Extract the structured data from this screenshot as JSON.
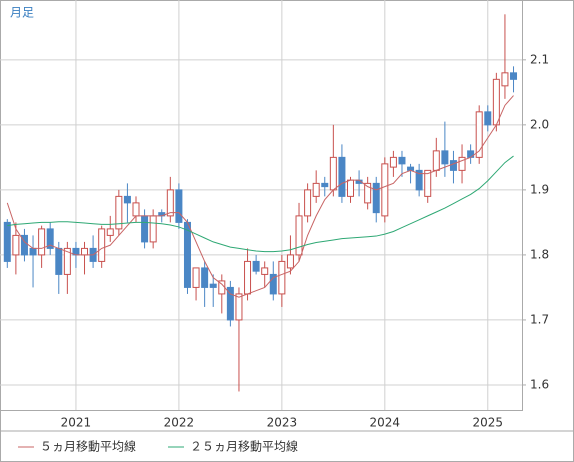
{
  "chart_data": {
    "type": "candlestick",
    "label": "月足",
    "categories": [
      null,
      null,
      null,
      null,
      null,
      null,
      null,
      null,
      "2021",
      null,
      null,
      null,
      null,
      null,
      null,
      null,
      null,
      null,
      null,
      null,
      "2022",
      null,
      null,
      null,
      null,
      null,
      null,
      null,
      null,
      null,
      null,
      null,
      "2023",
      null,
      null,
      null,
      null,
      null,
      null,
      null,
      null,
      null,
      null,
      null,
      "2024",
      null,
      null,
      null,
      null,
      null,
      null,
      null,
      null,
      null,
      null,
      null,
      "2025",
      null,
      null,
      null
    ],
    "ohlc": {
      "up_color": "#c8504d",
      "down_color": "#4a86c5",
      "open": [
        1.85,
        1.8,
        1.83,
        1.81,
        1.8,
        1.84,
        1.81,
        1.77,
        1.81,
        1.8,
        1.81,
        1.79,
        1.83,
        1.84,
        1.89,
        1.86,
        1.86,
        1.82,
        1.865,
        1.86,
        1.9,
        1.85,
        1.75,
        1.78,
        1.755,
        1.74,
        1.75,
        1.7,
        1.74,
        1.79,
        1.77,
        1.77,
        1.74,
        1.78,
        1.8,
        1.86,
        1.89,
        1.91,
        1.9,
        1.95,
        1.89,
        1.915,
        1.88,
        1.91,
        1.86,
        1.935,
        1.95,
        1.935,
        1.93,
        1.89,
        1.93,
        1.96,
        1.945,
        1.93,
        1.96,
        1.95,
        2.02,
        2.0,
        2.06,
        2.08
      ],
      "high": [
        1.855,
        1.85,
        1.84,
        1.83,
        1.845,
        1.85,
        1.82,
        1.82,
        1.82,
        1.82,
        1.83,
        1.845,
        1.86,
        1.9,
        1.91,
        1.89,
        1.87,
        1.87,
        1.87,
        1.92,
        1.91,
        1.855,
        1.78,
        1.79,
        1.77,
        1.77,
        1.76,
        1.75,
        1.81,
        1.8,
        1.79,
        1.79,
        1.8,
        1.83,
        1.88,
        1.91,
        1.93,
        1.92,
        2.0,
        1.97,
        1.92,
        1.93,
        1.92,
        1.92,
        1.95,
        1.96,
        1.96,
        1.94,
        1.94,
        1.93,
        1.98,
        2.005,
        1.96,
        1.97,
        1.97,
        2.03,
        2.03,
        2.08,
        2.17,
        2.09
      ],
      "low": [
        1.78,
        1.77,
        1.79,
        1.75,
        1.78,
        1.8,
        1.74,
        1.74,
        1.78,
        1.77,
        1.78,
        1.78,
        1.82,
        1.83,
        1.85,
        1.85,
        1.81,
        1.81,
        1.85,
        1.85,
        1.84,
        1.74,
        1.73,
        1.72,
        1.72,
        1.71,
        1.69,
        1.59,
        1.73,
        1.77,
        1.75,
        1.73,
        1.72,
        1.77,
        1.79,
        1.85,
        1.88,
        1.89,
        1.89,
        1.88,
        1.88,
        1.89,
        1.87,
        1.85,
        1.85,
        1.92,
        1.92,
        1.91,
        1.89,
        1.88,
        1.92,
        1.92,
        1.91,
        1.91,
        1.94,
        1.94,
        1.99,
        1.99,
        2.04,
        2.05
      ],
      "close": [
        1.79,
        1.83,
        1.8,
        1.8,
        1.84,
        1.81,
        1.77,
        1.81,
        1.8,
        1.81,
        1.79,
        1.84,
        1.84,
        1.89,
        1.88,
        1.88,
        1.82,
        1.86,
        1.86,
        1.9,
        1.85,
        1.75,
        1.78,
        1.75,
        1.75,
        1.76,
        1.7,
        1.74,
        1.79,
        1.775,
        1.78,
        1.74,
        1.79,
        1.8,
        1.86,
        1.9,
        1.91,
        1.905,
        1.95,
        1.89,
        1.915,
        1.91,
        1.91,
        1.865,
        1.94,
        1.95,
        1.94,
        1.93,
        1.9,
        1.93,
        1.96,
        1.94,
        1.93,
        1.95,
        1.95,
        2.02,
        2.0,
        2.07,
        2.08,
        2.07
      ]
    },
    "series": [
      {
        "name": "５ヵ月移動平均線",
        "color": "#c86464",
        "values": [
          1.88,
          1.84,
          1.82,
          1.81,
          1.81,
          1.815,
          1.81,
          1.805,
          1.8,
          1.8,
          1.8,
          1.81,
          1.815,
          1.83,
          1.845,
          1.86,
          1.86,
          1.86,
          1.86,
          1.865,
          1.865,
          1.85,
          1.82,
          1.79,
          1.765,
          1.755,
          1.74,
          1.735,
          1.74,
          1.745,
          1.75,
          1.765,
          1.77,
          1.775,
          1.79,
          1.83,
          1.86,
          1.885,
          1.9,
          1.91,
          1.915,
          1.915,
          1.905,
          1.9,
          1.905,
          1.91,
          1.925,
          1.93,
          1.925,
          1.925,
          1.93,
          1.935,
          1.94,
          1.945,
          1.95,
          1.96,
          1.98,
          2.0,
          2.03,
          2.045
        ]
      },
      {
        "name": "２５ヵ月移動平均線",
        "color": "#2ea874",
        "values": [
          1.845,
          1.847,
          1.848,
          1.849,
          1.85,
          1.85,
          1.851,
          1.851,
          1.85,
          1.849,
          1.848,
          1.847,
          1.847,
          1.848,
          1.849,
          1.85,
          1.85,
          1.849,
          1.848,
          1.846,
          1.843,
          1.838,
          1.832,
          1.826,
          1.82,
          1.816,
          1.812,
          1.81,
          1.808,
          1.806,
          1.805,
          1.805,
          1.806,
          1.808,
          1.812,
          1.816,
          1.819,
          1.821,
          1.823,
          1.825,
          1.826,
          1.827,
          1.828,
          1.829,
          1.832,
          1.836,
          1.842,
          1.848,
          1.854,
          1.86,
          1.866,
          1.872,
          1.879,
          1.886,
          1.893,
          1.902,
          1.914,
          1.928,
          1.942,
          1.952
        ]
      }
    ],
    "ylim": [
      1.5615,
      2.192
    ],
    "yticks": [
      1.6,
      1.7,
      1.8,
      1.9,
      {
        "value": 2,
        "label": "2.0"
      },
      2.1
    ],
    "grid": true
  }
}
